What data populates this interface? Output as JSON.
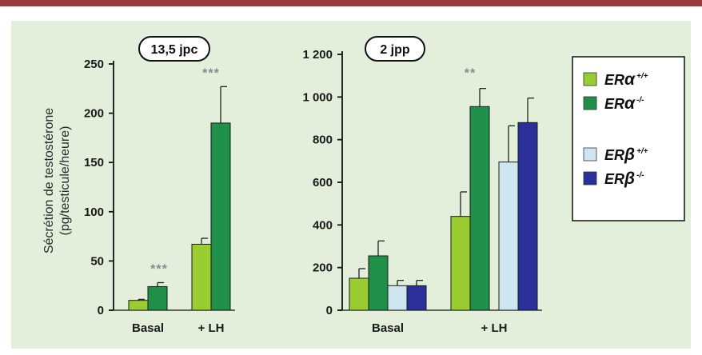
{
  "colors": {
    "top_line": "#9a3a3c",
    "panel_bg": "#e3eedb",
    "er_alpha_wt": "#9acd32",
    "er_alpha_ko": "#1f8f4a",
    "er_beta_wt": "#cfe6f0",
    "er_beta_ko": "#2a2f9a"
  },
  "ylabel_line1": "Sécrétion de testostérone",
  "ylabel_line2": "(pg/testicule/heure)",
  "legend": {
    "items": [
      {
        "base": "ER",
        "greek": "α",
        "sup": "+/+",
        "color_key": "er_alpha_wt"
      },
      {
        "base": "ER",
        "greek": "α",
        "sup": "-/-",
        "color_key": "er_alpha_ko"
      },
      {
        "base": "ER",
        "greek": "β",
        "sup": "+/+",
        "color_key": "er_beta_wt"
      },
      {
        "base": "ER",
        "greek": "β",
        "sup": "-/-",
        "color_key": "er_beta_ko"
      }
    ]
  },
  "chart_data": [
    {
      "type": "bar",
      "title": "13,5 jpc",
      "categories": [
        "Basal",
        "+ LH"
      ],
      "ylim": [
        0,
        250
      ],
      "yticks": [
        0,
        50,
        100,
        150,
        200,
        250
      ],
      "ytick_labels": [
        "0",
        "50",
        "100",
        "150",
        "200",
        "250"
      ],
      "series": [
        {
          "name": "ERα +/+",
          "color_key": "er_alpha_wt",
          "values": [
            10,
            67
          ],
          "errors": [
            1,
            6
          ]
        },
        {
          "name": "ERα -/-",
          "color_key": "er_alpha_ko",
          "values": [
            24,
            190
          ],
          "errors": [
            4,
            37
          ]
        }
      ],
      "annotations": [
        {
          "category": "Basal",
          "text": "***"
        },
        {
          "category": "+ LH",
          "text": "***"
        }
      ]
    },
    {
      "type": "bar",
      "title": "2 jpp",
      "categories": [
        "Basal",
        "+ LH"
      ],
      "ylim": [
        0,
        1200
      ],
      "yticks": [
        0,
        200,
        400,
        600,
        800,
        1000,
        1200
      ],
      "ytick_labels": [
        "0",
        "200",
        "400",
        "600",
        "800",
        "1 000",
        "1 200"
      ],
      "series": [
        {
          "name": "ERα +/+",
          "color_key": "er_alpha_wt",
          "values": [
            150,
            440
          ],
          "errors": [
            45,
            115
          ]
        },
        {
          "name": "ERα -/-",
          "color_key": "er_alpha_ko",
          "values": [
            255,
            955
          ],
          "errors": [
            70,
            85
          ]
        },
        {
          "name": "ERβ +/+",
          "color_key": "er_beta_wt",
          "values": [
            115,
            695
          ],
          "errors": [
            25,
            170
          ]
        },
        {
          "name": "ERβ -/-",
          "color_key": "er_beta_ko",
          "values": [
            115,
            880
          ],
          "errors": [
            25,
            115
          ]
        }
      ],
      "annotations": [
        {
          "category": "+ LH",
          "text": "**"
        }
      ]
    }
  ]
}
